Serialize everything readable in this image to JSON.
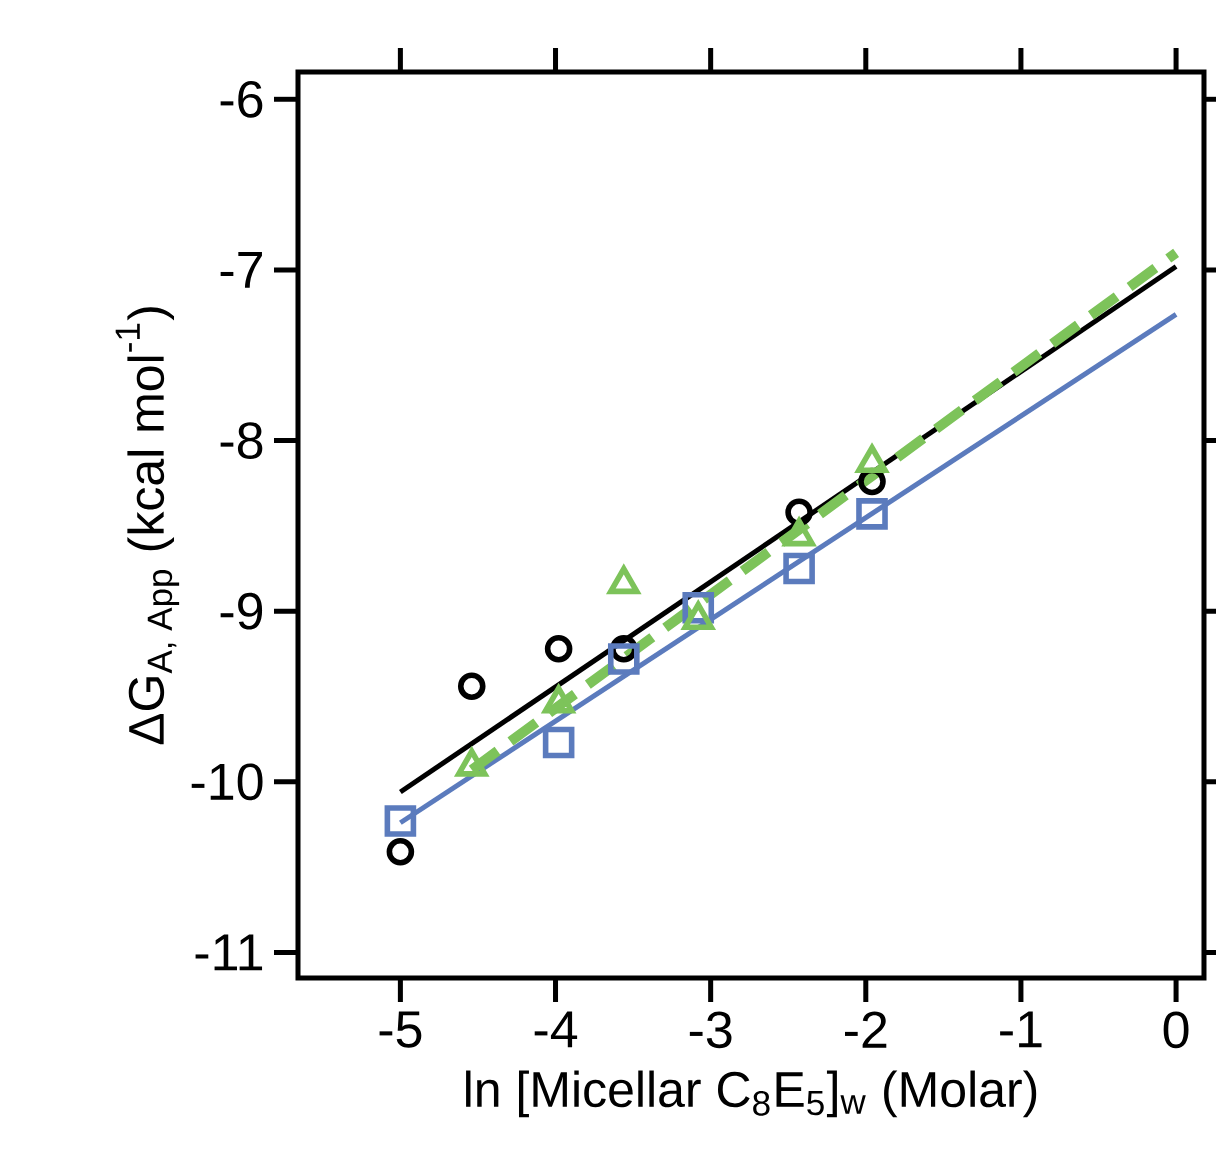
{
  "chart_data": {
    "type": "scatter",
    "xlabel": "ln [Micellar C$_{8}$E$_{5}$]$_{w}$ (Molar)",
    "ylabel": "\\text{ΔG}_{\\text{A, App}}\\text{ (kcal mol}^{\\text{-1}}\\text{)}",
    "xlim": [
      -5.66,
      0.18
    ],
    "ylim": [
      -11.15,
      -5.84
    ],
    "xticks": [
      -5,
      -4,
      -3,
      -2,
      -1,
      0
    ],
    "yticks": [
      -11,
      -10,
      -9,
      -8,
      -7,
      -6
    ],
    "grid": false,
    "series": [
      {
        "type": "scatter",
        "marker": "circle",
        "color": "#000000",
        "x": [
          -5,
          -4.54,
          -3.98,
          -3.56,
          -2.43,
          -1.96
        ],
        "values": [
          -10.41,
          -9.44,
          -9.22,
          -9.22,
          -8.42,
          -8.24
        ]
      },
      {
        "type": "scatter",
        "marker": "square",
        "color": "#5b7bbd",
        "x": [
          -5,
          -3.98,
          -3.56,
          -3.08,
          -2.43,
          -1.96
        ],
        "values": [
          -10.23,
          -9.77,
          -9.28,
          -8.98,
          -8.75,
          -8.43
        ]
      },
      {
        "type": "scatter",
        "marker": "triangle",
        "color": "#7dc35a",
        "x": [
          -4.54,
          -3.98,
          -3.56,
          -3.08,
          -2.43,
          -1.96
        ],
        "values": [
          -9.91,
          -9.54,
          -8.84,
          -9.05,
          -8.56,
          -8.13
        ]
      },
      {
        "type": "line",
        "marker": "none",
        "line_style": "solid",
        "color": "#000000",
        "x": [
          -5,
          0
        ],
        "values": [
          -10.06,
          -6.98
        ]
      },
      {
        "type": "line",
        "marker": "none",
        "line_style": "solid",
        "color": "#5b7bbd",
        "x": [
          -5,
          0
        ],
        "values": [
          -10.24,
          -7.26
        ]
      },
      {
        "type": "line",
        "marker": "none",
        "line_style": "dashed",
        "color": "#7dc35a",
        "x": [
          -4.54,
          0
        ],
        "values": [
          -9.93,
          -6.9
        ]
      }
    ]
  }
}
